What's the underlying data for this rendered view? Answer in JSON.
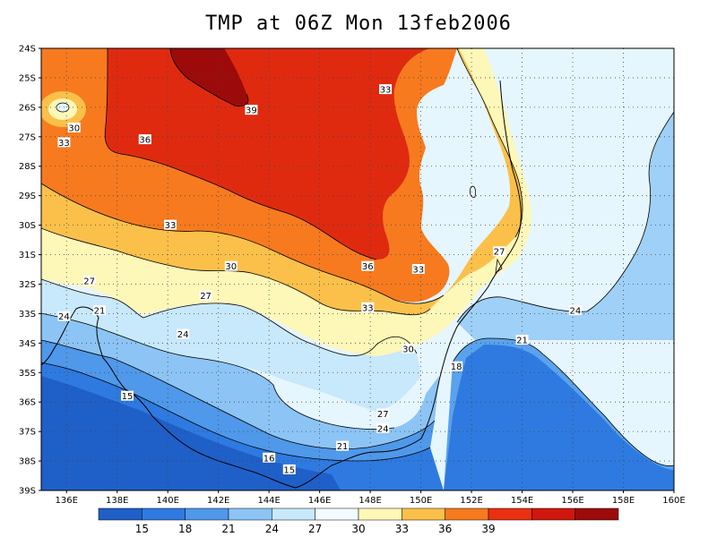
{
  "title": "TMP at 06Z Mon 13feb2006",
  "map": {
    "lat_ticks": [
      "24S",
      "25S",
      "26S",
      "27S",
      "28S",
      "29S",
      "30S",
      "31S",
      "32S",
      "33S",
      "34S",
      "35S",
      "36S",
      "37S",
      "38S",
      "39S"
    ],
    "lon_ticks": [
      "136E",
      "138E",
      "140E",
      "142E",
      "144E",
      "146E",
      "148E",
      "150E",
      "152E",
      "154E",
      "156E",
      "158E",
      "160E"
    ],
    "contour_labels": [
      {
        "text": "33",
        "lon": 148.6,
        "lat": -25.4
      },
      {
        "text": "39",
        "lon": 143.3,
        "lat": -26.1
      },
      {
        "text": "30",
        "lon": 136.3,
        "lat": -26.7
      },
      {
        "text": "33",
        "lon": 135.9,
        "lat": -27.2
      },
      {
        "text": "36",
        "lon": 139.1,
        "lat": -27.1
      },
      {
        "text": "33",
        "lon": 140.1,
        "lat": -30.0
      },
      {
        "text": "30",
        "lon": 142.5,
        "lat": -31.4
      },
      {
        "text": "36",
        "lon": 147.9,
        "lat": -31.4
      },
      {
        "text": "33",
        "lon": 149.9,
        "lat": -31.5
      },
      {
        "text": "27",
        "lon": 153.1,
        "lat": -30.9
      },
      {
        "text": "27",
        "lon": 136.9,
        "lat": -31.9
      },
      {
        "text": "27",
        "lon": 141.5,
        "lat": -32.4
      },
      {
        "text": "33",
        "lon": 147.9,
        "lat": -32.8
      },
      {
        "text": "21",
        "lon": 137.3,
        "lat": -32.9
      },
      {
        "text": "24",
        "lon": 135.9,
        "lat": -33.1
      },
      {
        "text": "24",
        "lon": 156.1,
        "lat": -32.9
      },
      {
        "text": "24",
        "lon": 140.6,
        "lat": -33.7
      },
      {
        "text": "21",
        "lon": 154.0,
        "lat": -33.9
      },
      {
        "text": "30",
        "lon": 149.5,
        "lat": -34.2
      },
      {
        "text": "18",
        "lon": 151.4,
        "lat": -34.8
      },
      {
        "text": "15",
        "lon": 138.4,
        "lat": -35.8
      },
      {
        "text": "27",
        "lon": 148.5,
        "lat": -36.4
      },
      {
        "text": "24",
        "lon": 148.5,
        "lat": -36.9
      },
      {
        "text": "21",
        "lon": 146.9,
        "lat": -37.5
      },
      {
        "text": "16",
        "lon": 144.0,
        "lat": -37.9
      },
      {
        "text": "15",
        "lon": 144.8,
        "lat": -38.3
      }
    ]
  },
  "colorbar": {
    "colors": [
      "#1f5fc8",
      "#2e7ae0",
      "#4f98ea",
      "#8cc4f5",
      "#c8e8fb",
      "#f2fbff",
      "#fdf7b8",
      "#fbc04a",
      "#f77a1f",
      "#ea3010",
      "#d0170e",
      "#9c0a0a"
    ],
    "labels": [
      "15",
      "18",
      "21",
      "24",
      "27",
      "30",
      "33",
      "36",
      "39"
    ]
  }
}
